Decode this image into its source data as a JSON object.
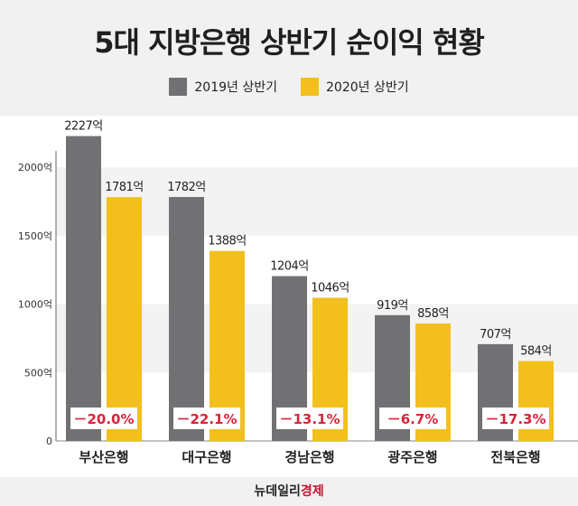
{
  "title": "5대 지방은행 상반기 순이익 현황",
  "legend": {
    "series1_label": "2019년 상반기",
    "series2_label": "2020년 상반기"
  },
  "colors": {
    "series1": "#717073",
    "series2": "#f2bf1d",
    "change_text": "#d6243a"
  },
  "chart_data": {
    "type": "bar",
    "title": "5대 지방은행 상반기 순이익 현황",
    "categories": [
      "부산은행",
      "대구은행",
      "경남은행",
      "광주은행",
      "전북은행"
    ],
    "series": [
      {
        "name": "2019년 상반기",
        "values": [
          2227,
          1782,
          1204,
          919,
          707
        ],
        "labels": [
          "2227억",
          "1782억",
          "1204억",
          "919억",
          "707억"
        ]
      },
      {
        "name": "2020년 상반기",
        "values": [
          1781,
          1388,
          1046,
          858,
          584
        ],
        "labels": [
          "1781억",
          "1388억",
          "1046억",
          "858억",
          "584억"
        ]
      }
    ],
    "changes": [
      "－20.0%",
      "－22.1%",
      "－13.1%",
      "－6.7%",
      "－17.3%"
    ],
    "yticks": [
      0,
      500,
      1000,
      1500,
      2000
    ],
    "ytick_labels": [
      "0",
      "500억",
      "1000억",
      "1500억",
      "2000억"
    ],
    "ylim": [
      0,
      2250
    ],
    "xlabel": "",
    "ylabel": "",
    "grid": "alternating bands"
  },
  "footer": {
    "brand_part1": "뉴데일리",
    "brand_part2": "경제"
  }
}
